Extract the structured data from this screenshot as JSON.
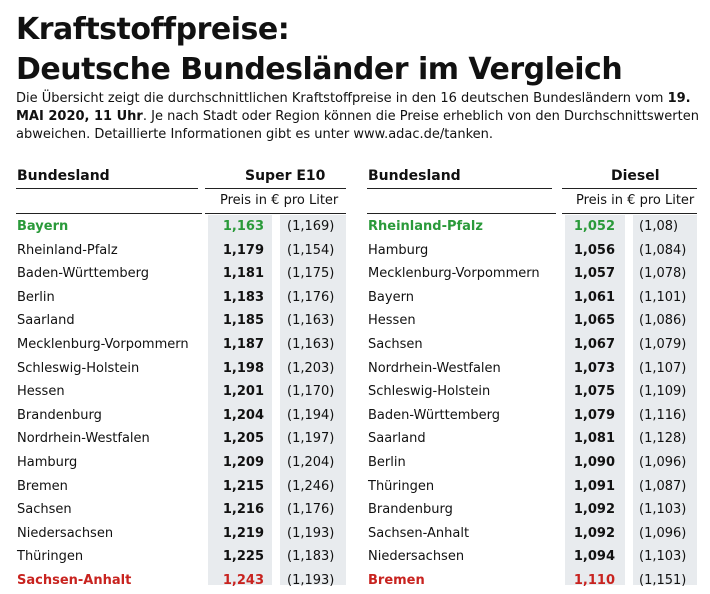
{
  "title": {
    "line1": "Kraftstoffpreise:",
    "line2": "Deutsche Bundesländer im Vergleich"
  },
  "intro": {
    "part1": "Die Übersicht zeigt die durchschnittlichen Kraftstoffpreise in den 16 deutschen Bundesländern vom ",
    "date": "19. MAI 2020, 11 Uhr",
    "part2": ". Je nach Stadt oder Region können die Preise erheblich von den Durchschnittswerten abweichen. Detaillierte Informationen gibt es unter www.adac.de/tanken."
  },
  "super": {
    "col_state": "Bundesland",
    "col_fuel": "Super E10",
    "subheader": "Preis in € pro Liter",
    "rows": [
      {
        "state": "Bayern",
        "price": "1,163",
        "prev": "(1,169)",
        "highlight": "green"
      },
      {
        "state": "Rheinland-Pfalz",
        "price": "1,179",
        "prev": "(1,154)",
        "highlight": ""
      },
      {
        "state": "Baden-Württemberg",
        "price": "1,181",
        "prev": "(1,175)",
        "highlight": ""
      },
      {
        "state": "Berlin",
        "price": "1,183",
        "prev": "(1,176)",
        "highlight": ""
      },
      {
        "state": "Saarland",
        "price": "1,185",
        "prev": "(1,163)",
        "highlight": ""
      },
      {
        "state": "Mecklenburg-Vorpommern",
        "price": "1,187",
        "prev": "(1,163)",
        "highlight": ""
      },
      {
        "state": "Schleswig-Holstein",
        "price": "1,198",
        "prev": "(1,203)",
        "highlight": ""
      },
      {
        "state": "Hessen",
        "price": "1,201",
        "prev": "(1,170)",
        "highlight": ""
      },
      {
        "state": "Brandenburg",
        "price": "1,204",
        "prev": "(1,194)",
        "highlight": ""
      },
      {
        "state": "Nordrhein-Westfalen",
        "price": "1,205",
        "prev": "(1,197)",
        "highlight": ""
      },
      {
        "state": "Hamburg",
        "price": "1,209",
        "prev": "(1,204)",
        "highlight": ""
      },
      {
        "state": "Bremen",
        "price": "1,215",
        "prev": "(1,246)",
        "highlight": ""
      },
      {
        "state": "Sachsen",
        "price": "1,216",
        "prev": "(1,176)",
        "highlight": ""
      },
      {
        "state": "Niedersachsen",
        "price": "1,219",
        "prev": "(1,193)",
        "highlight": ""
      },
      {
        "state": "Thüringen",
        "price": "1,225",
        "prev": "(1,183)",
        "highlight": ""
      },
      {
        "state": "Sachsen-Anhalt",
        "price": "1,243",
        "prev": "(1,193)",
        "highlight": "red"
      }
    ]
  },
  "diesel": {
    "col_state": "Bundesland",
    "col_fuel": "Diesel",
    "subheader": "Preis in € pro Liter",
    "rows": [
      {
        "state": "Rheinland-Pfalz",
        "price": "1,052",
        "prev": "(1,08)",
        "highlight": "green"
      },
      {
        "state": "Hamburg",
        "price": "1,056",
        "prev": "(1,084)",
        "highlight": ""
      },
      {
        "state": "Mecklenburg-Vorpommern",
        "price": "1,057",
        "prev": "(1,078)",
        "highlight": ""
      },
      {
        "state": "Bayern",
        "price": "1,061",
        "prev": "(1,101)",
        "highlight": ""
      },
      {
        "state": "Hessen",
        "price": "1,065",
        "prev": "(1,086)",
        "highlight": ""
      },
      {
        "state": "Sachsen",
        "price": "1,067",
        "prev": "(1,079)",
        "highlight": ""
      },
      {
        "state": "Nordrhein-Westfalen",
        "price": "1,073",
        "prev": "(1,107)",
        "highlight": ""
      },
      {
        "state": "Schleswig-Holstein",
        "price": "1,075",
        "prev": "(1,109)",
        "highlight": ""
      },
      {
        "state": "Baden-Württemberg",
        "price": "1,079",
        "prev": "(1,116)",
        "highlight": ""
      },
      {
        "state": "Saarland",
        "price": "1,081",
        "prev": "(1,128)",
        "highlight": ""
      },
      {
        "state": "Berlin",
        "price": "1,090",
        "prev": "(1,096)",
        "highlight": ""
      },
      {
        "state": "Thüringen",
        "price": "1,091",
        "prev": "(1,087)",
        "highlight": ""
      },
      {
        "state": "Brandenburg",
        "price": "1,092",
        "prev": "(1,103)",
        "highlight": ""
      },
      {
        "state": "Sachsen-Anhalt",
        "price": "1,092",
        "prev": "(1,096)",
        "highlight": ""
      },
      {
        "state": "Niedersachsen",
        "price": "1,094",
        "prev": "(1,103)",
        "highlight": ""
      },
      {
        "state": "Bremen",
        "price": "1,110",
        "prev": "(1,151)",
        "highlight": "red"
      }
    ]
  },
  "colors": {
    "best": "#2a9a3a",
    "worst": "#c8231f",
    "band": "#e8ebee"
  }
}
